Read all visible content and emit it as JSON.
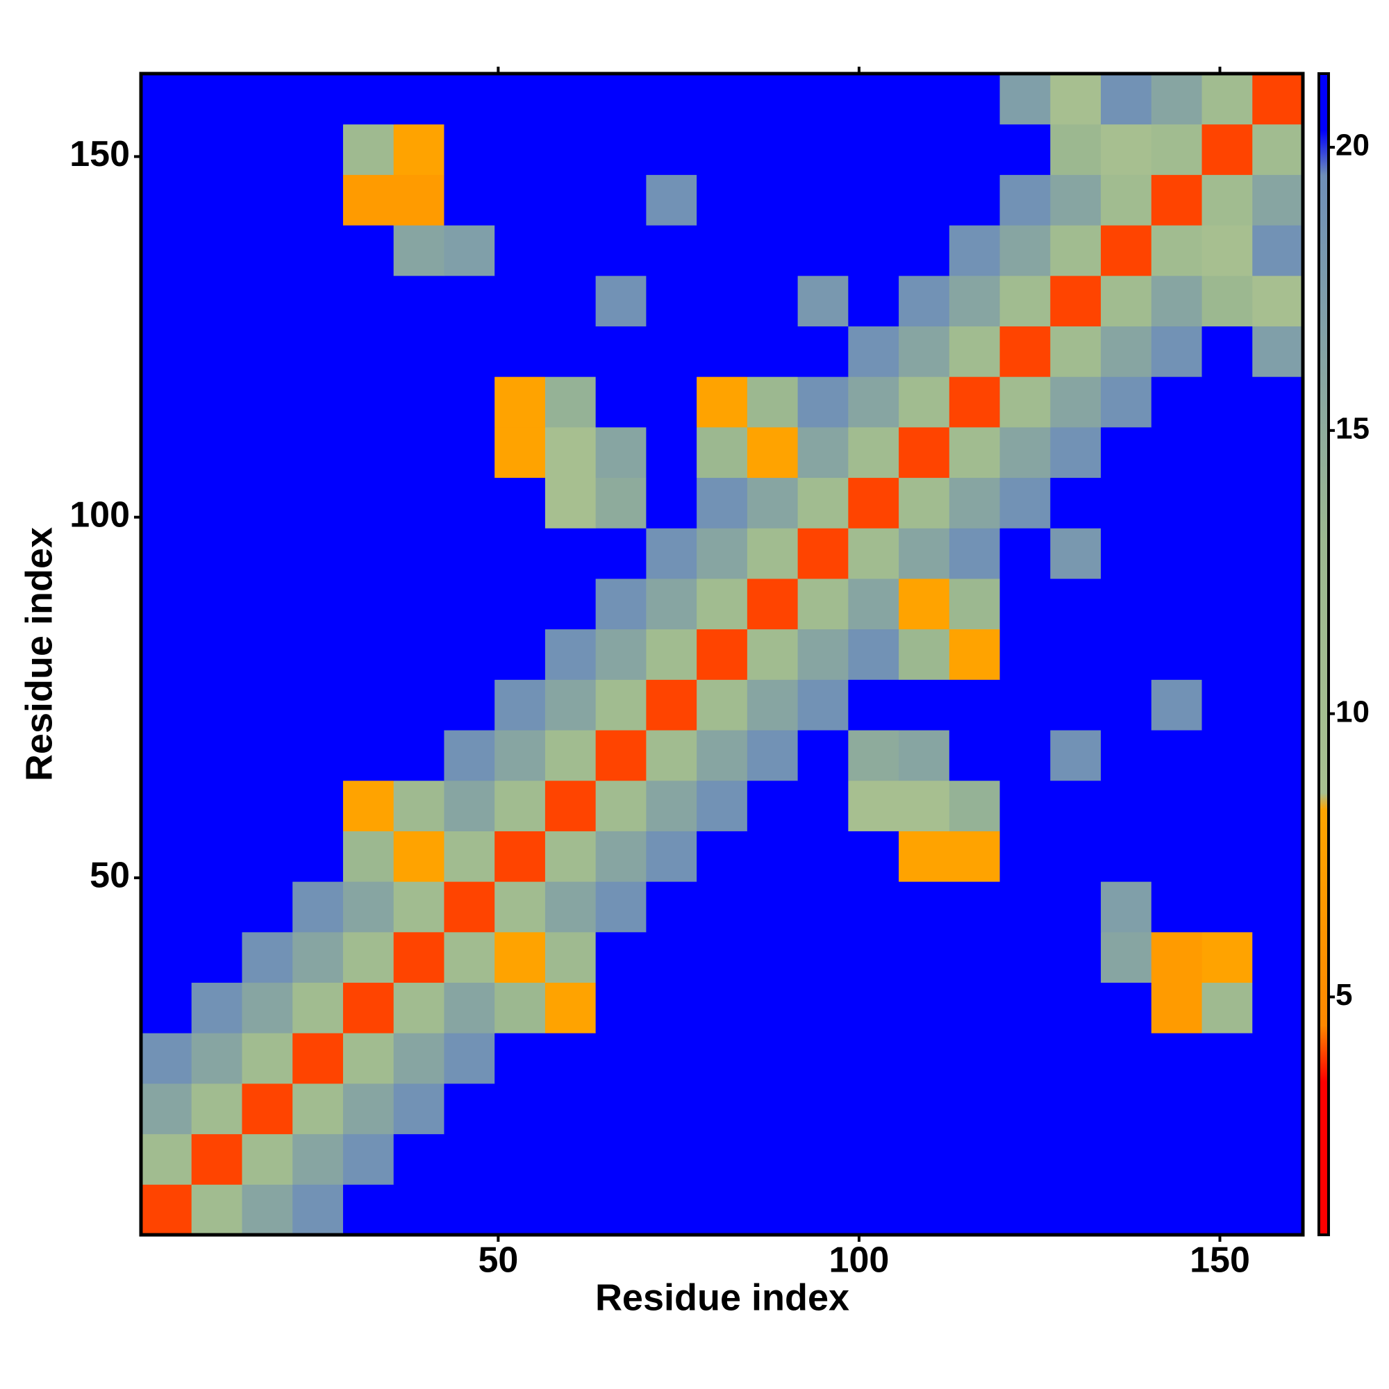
{
  "chart_data": {
    "type": "heatmap",
    "x_label": "Residue index",
    "y_label": "Residue index",
    "xbins": [
      0.5,
      7.5,
      14.5,
      21.5,
      28.5,
      35.5,
      42.5,
      49.5,
      56.5,
      63.5,
      70.5,
      77.5,
      84.5,
      91.5,
      98.5,
      105.5,
      112.5,
      119.5,
      126.5,
      133.5,
      140.5,
      147.5,
      154.5,
      161.5
    ],
    "ybins": [
      0.5,
      7.5,
      14.5,
      21.5,
      28.5,
      35.5,
      42.5,
      49.5,
      56.5,
      63.5,
      70.5,
      77.5,
      84.5,
      91.5,
      98.5,
      105.5,
      112.5,
      119.5,
      126.5,
      133.5,
      140.5,
      147.5,
      154.5,
      161.5
    ],
    "values": [
      [
        4,
        11,
        16,
        19,
        21,
        21,
        21,
        21,
        21,
        21,
        21,
        21,
        21,
        21,
        21,
        21,
        21,
        21,
        21,
        21,
        21,
        21,
        21
      ],
      [
        11,
        4,
        11,
        16,
        19,
        21,
        21,
        21,
        21,
        21,
        21,
        21,
        21,
        21,
        21,
        21,
        21,
        21,
        21,
        21,
        21,
        21,
        21
      ],
      [
        16,
        11,
        4,
        11,
        16,
        19,
        21,
        21,
        21,
        21,
        21,
        21,
        21,
        21,
        21,
        21,
        21,
        21,
        21,
        21,
        21,
        21,
        21
      ],
      [
        19,
        16,
        11,
        4,
        11,
        16,
        19,
        21,
        21,
        21,
        21,
        21,
        21,
        21,
        21,
        21,
        21,
        21,
        21,
        21,
        21,
        21,
        21
      ],
      [
        21,
        19,
        16,
        11,
        4,
        11,
        16,
        13,
        8,
        21,
        21,
        21,
        21,
        21,
        21,
        21,
        21,
        21,
        21,
        21,
        7,
        12,
        21
      ],
      [
        21,
        21,
        19,
        16,
        11,
        4,
        11,
        8,
        12,
        21,
        21,
        21,
        21,
        21,
        21,
        21,
        21,
        21,
        21,
        16,
        7,
        8,
        21
      ],
      [
        21,
        21,
        21,
        19,
        16,
        11,
        4,
        11,
        16,
        19,
        21,
        21,
        21,
        21,
        21,
        21,
        21,
        21,
        21,
        17,
        21,
        21,
        21
      ],
      [
        21,
        21,
        21,
        21,
        13,
        8,
        11,
        4,
        11,
        16,
        19,
        21,
        21,
        21,
        21,
        8,
        8,
        21,
        21,
        21,
        21,
        21,
        21
      ],
      [
        21,
        21,
        21,
        21,
        8,
        12,
        16,
        11,
        4,
        11,
        16,
        19,
        21,
        21,
        9,
        9,
        14,
        21,
        21,
        21,
        21,
        21,
        21
      ],
      [
        21,
        21,
        21,
        21,
        21,
        21,
        19,
        16,
        11,
        4,
        11,
        16,
        19,
        21,
        15,
        16,
        21,
        21,
        19,
        21,
        21,
        21,
        21
      ],
      [
        21,
        21,
        21,
        21,
        21,
        21,
        21,
        19,
        16,
        11,
        4,
        11,
        16,
        19,
        21,
        21,
        21,
        21,
        21,
        21,
        19,
        21,
        21
      ],
      [
        21,
        21,
        21,
        21,
        21,
        21,
        21,
        21,
        19,
        16,
        11,
        4,
        11,
        16,
        19,
        13,
        8,
        21,
        21,
        21,
        21,
        21,
        21
      ],
      [
        21,
        21,
        21,
        21,
        21,
        21,
        21,
        21,
        21,
        19,
        16,
        11,
        4,
        11,
        16,
        8,
        13,
        21,
        21,
        21,
        21,
        21,
        21
      ],
      [
        21,
        21,
        21,
        21,
        21,
        21,
        21,
        21,
        21,
        21,
        19,
        16,
        11,
        4,
        11,
        16,
        19,
        21,
        18,
        21,
        21,
        21,
        21
      ],
      [
        21,
        21,
        21,
        21,
        21,
        21,
        21,
        21,
        9,
        15,
        21,
        19,
        16,
        11,
        4,
        11,
        16,
        19,
        21,
        21,
        21,
        21,
        21
      ],
      [
        21,
        21,
        21,
        21,
        21,
        21,
        21,
        8,
        9,
        16,
        21,
        13,
        8,
        16,
        11,
        4,
        11,
        16,
        19,
        21,
        21,
        21,
        21
      ],
      [
        21,
        21,
        21,
        21,
        21,
        21,
        21,
        8,
        14,
        21,
        21,
        8,
        13,
        19,
        16,
        11,
        4,
        11,
        16,
        19,
        21,
        21,
        21
      ],
      [
        21,
        21,
        21,
        21,
        21,
        21,
        21,
        21,
        21,
        21,
        21,
        21,
        21,
        21,
        19,
        16,
        11,
        4,
        11,
        16,
        19,
        21,
        17
      ],
      [
        21,
        21,
        21,
        21,
        21,
        21,
        21,
        21,
        21,
        19,
        21,
        21,
        21,
        18,
        21,
        19,
        16,
        11,
        4,
        11,
        16,
        13,
        9
      ],
      [
        21,
        21,
        21,
        21,
        21,
        16,
        17,
        21,
        21,
        21,
        21,
        21,
        21,
        21,
        21,
        21,
        19,
        16,
        11,
        4,
        11,
        9,
        19
      ],
      [
        21,
        21,
        21,
        21,
        7,
        7,
        21,
        21,
        21,
        21,
        19,
        21,
        21,
        21,
        21,
        21,
        21,
        19,
        16,
        11,
        4,
        11,
        16
      ],
      [
        21,
        21,
        21,
        21,
        12,
        8,
        21,
        21,
        21,
        21,
        21,
        21,
        21,
        21,
        21,
        21,
        21,
        21,
        13,
        9,
        11,
        4,
        11
      ],
      [
        21,
        21,
        21,
        21,
        21,
        21,
        21,
        21,
        21,
        21,
        21,
        21,
        21,
        21,
        21,
        21,
        21,
        17,
        9,
        19,
        16,
        11,
        4
      ]
    ],
    "xlim": [
      0.5,
      161.5
    ],
    "ylim": [
      0.5,
      161.5
    ],
    "xticks": [
      50,
      100,
      150
    ],
    "yticks": [
      50,
      100,
      150
    ],
    "colorbar": {
      "lim": [
        0.8,
        21.3
      ],
      "ticks": [
        5,
        10,
        15,
        20
      ],
      "colorscale": [
        [
          0.8,
          "#ff0000"
        ],
        [
          3.5,
          "#ff0000"
        ],
        [
          4.5,
          "#ff8800"
        ],
        [
          8.3,
          "#ffa500"
        ],
        [
          8.6,
          "#a8c090"
        ],
        [
          13,
          "#9cb890"
        ],
        [
          19.5,
          "#6f8fb8"
        ],
        [
          20.3,
          "#0000ff"
        ],
        [
          21.3,
          "#0000ff"
        ]
      ]
    }
  }
}
